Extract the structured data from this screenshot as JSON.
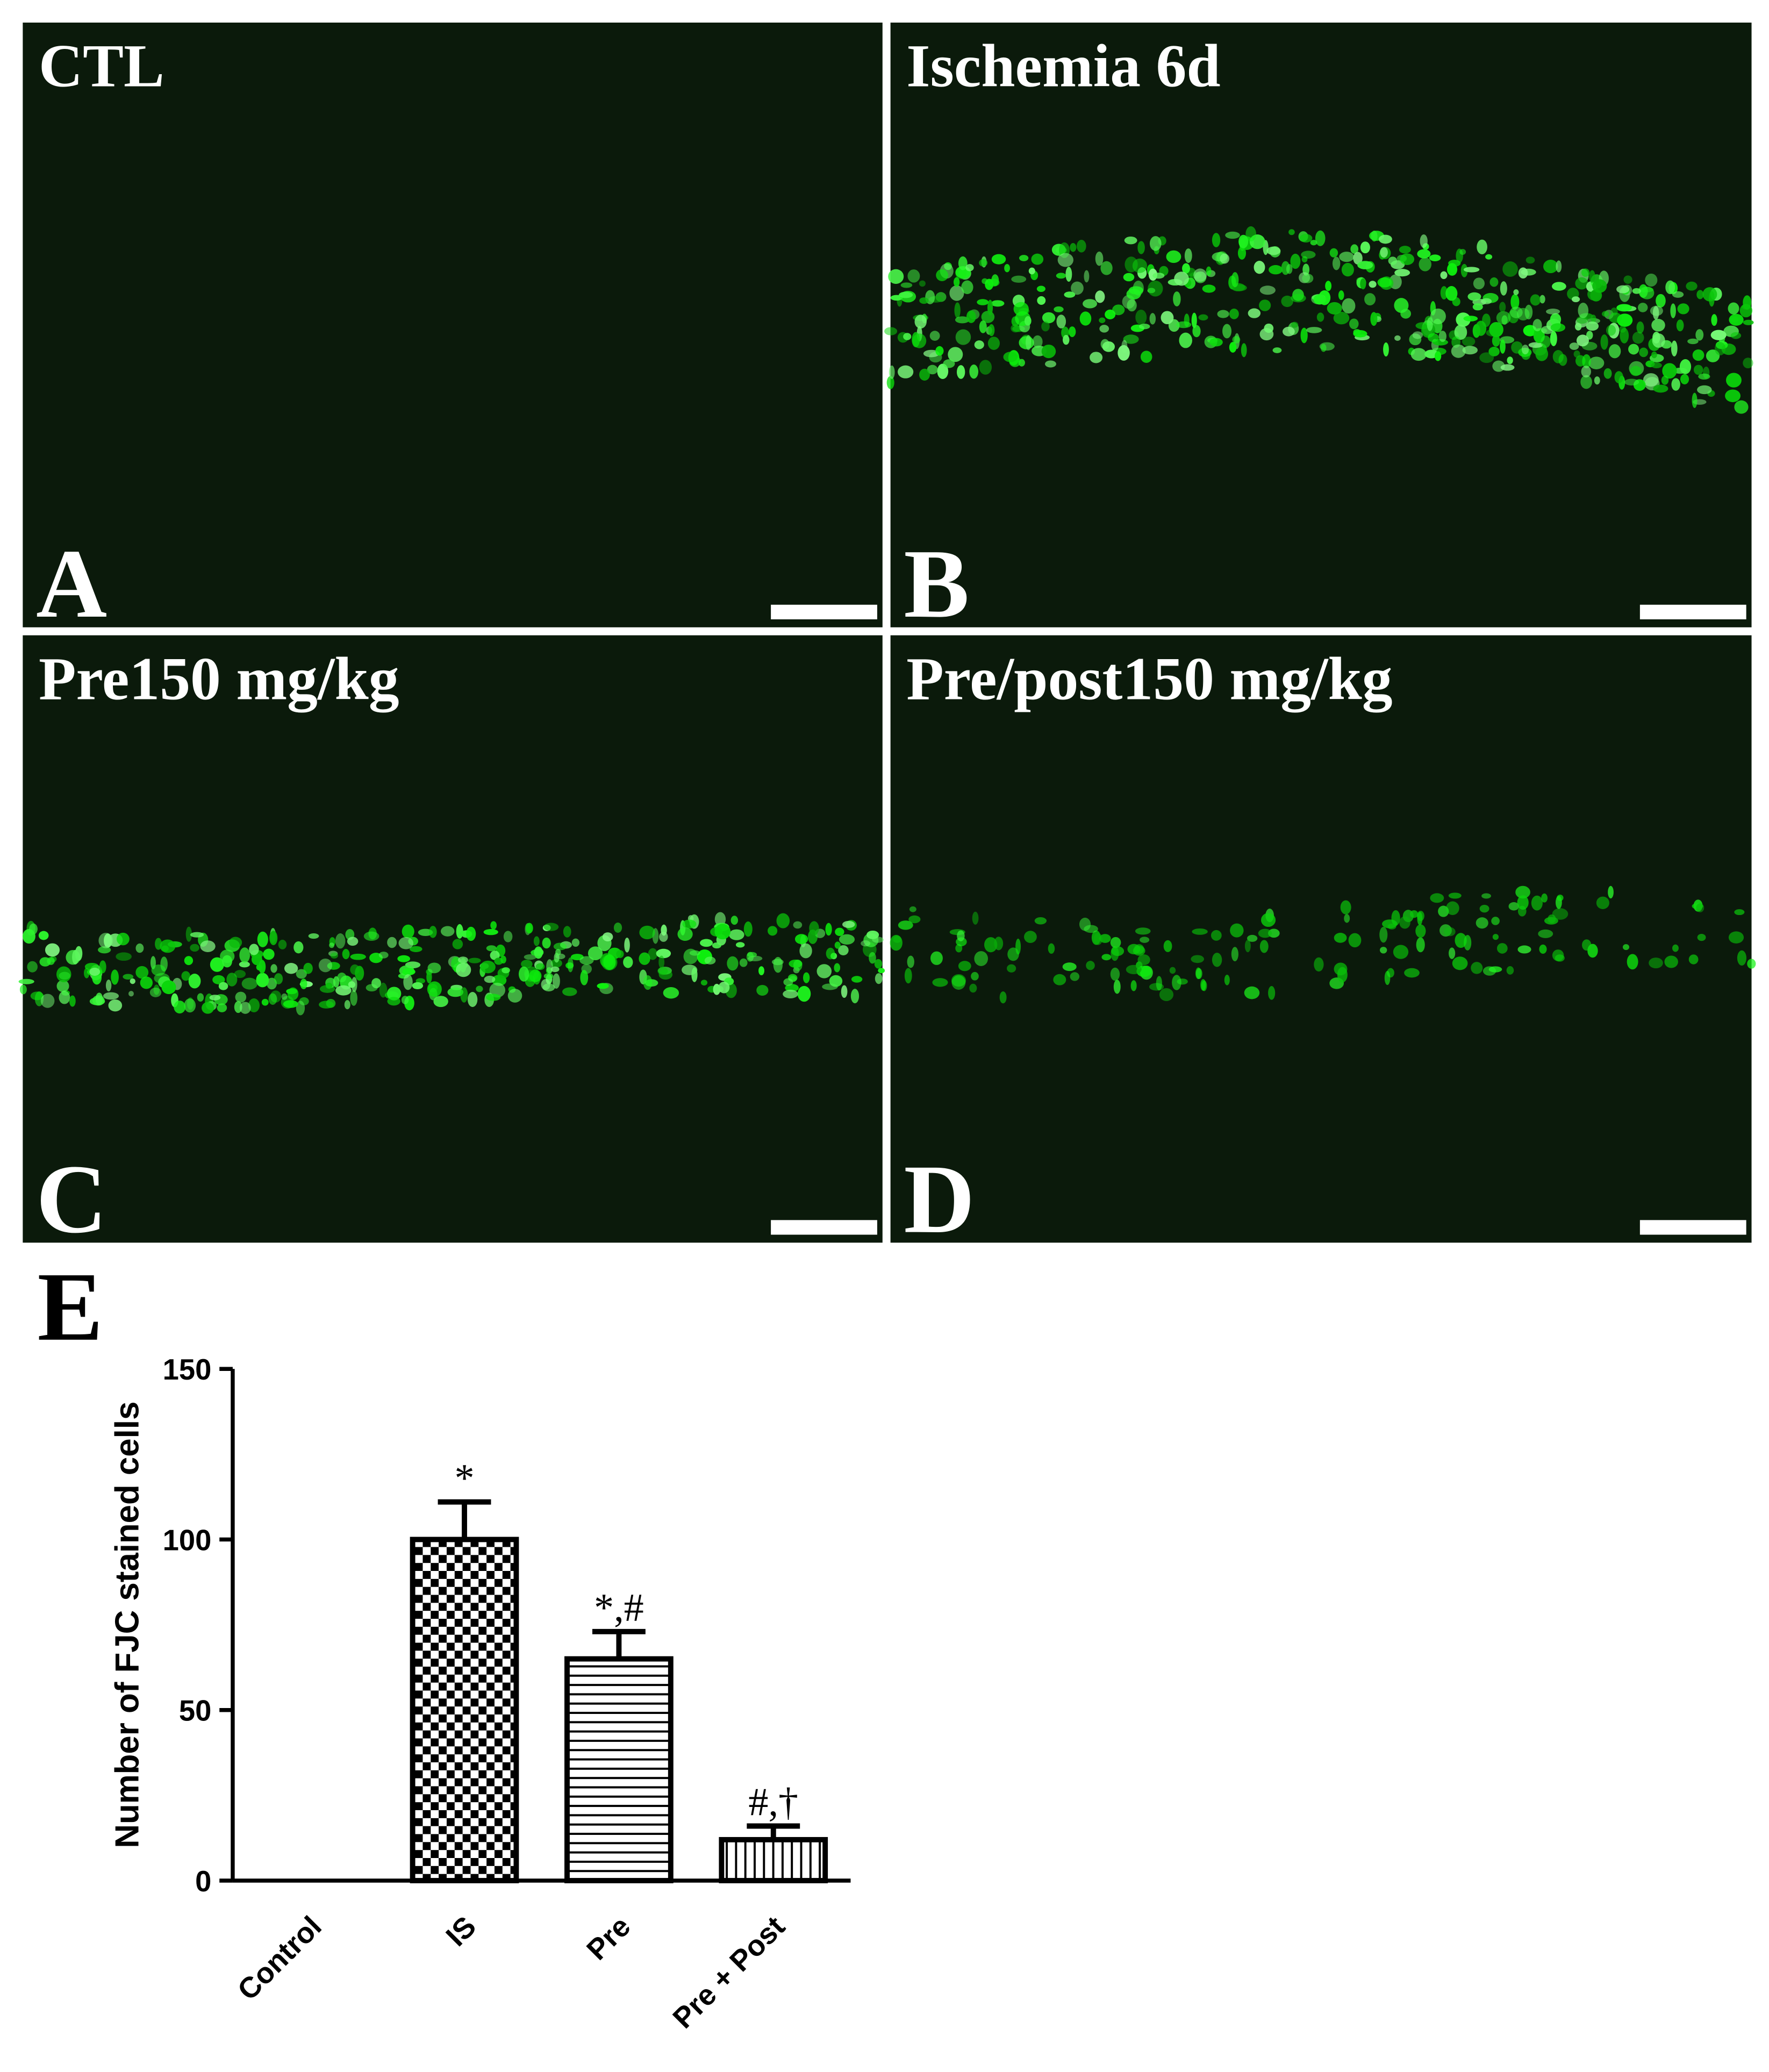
{
  "panels": [
    {
      "title": "CTL",
      "letter": "A"
    },
    {
      "title": "Ischemia 6d",
      "letter": "B"
    },
    {
      "title": "Pre150 mg/kg",
      "letter": "C"
    },
    {
      "title": "Pre/post150 mg/kg",
      "letter": "D"
    }
  ],
  "chart_data": {
    "type": "bar",
    "panel_letter": "E",
    "y_label": "Number of FJC stained cells",
    "categories": [
      "Control",
      "IS",
      "Pre",
      "Pre + Post"
    ],
    "values": [
      0,
      100,
      65,
      12
    ],
    "errors": [
      0,
      11,
      8,
      4
    ],
    "annotations": [
      null,
      "*",
      "*,#",
      "#,†"
    ],
    "color": "#000000",
    "ylim": [
      0,
      150
    ],
    "yticks": [
      0,
      50,
      100,
      150
    ]
  }
}
